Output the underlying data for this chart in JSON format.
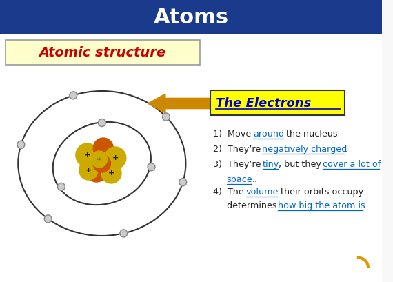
{
  "title": "Atoms",
  "title_bg": "#1a3a8c",
  "title_color": "#ffffff",
  "subtitle": "Atomic structure",
  "subtitle_bg": "#ffffcc",
  "subtitle_color": "#cc0000",
  "bg_color": "#f8f8f8",
  "electrons_label": "The Electrons",
  "electrons_label_bg": "#ffff00",
  "electrons_label_color": "#0000cc",
  "bullet_color": "#222222",
  "link_color": "#0066cc",
  "nucleus_yellow": "#ccaa00",
  "nucleus_orange": "#cc5500",
  "electron_color": "#cccccc",
  "electron_edge": "#888888",
  "arrow_color": "#cc8800",
  "curl_color": "#dd9900"
}
